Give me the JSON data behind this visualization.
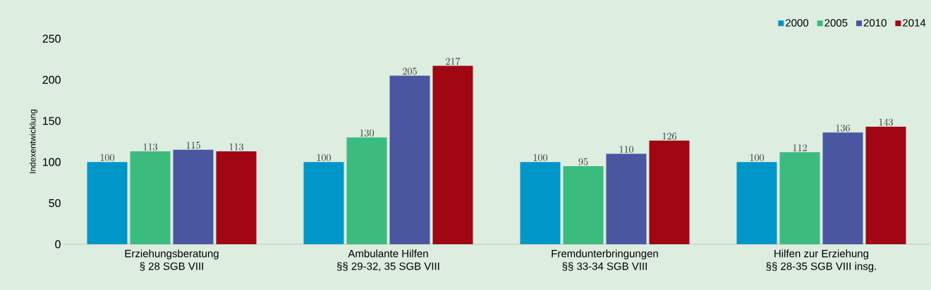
{
  "chart_data": {
    "type": "bar",
    "ylabel": "Indexentwicklung",
    "categories": [
      "Erziehungsberatung\n§ 28 SGB VIII",
      "Ambulante Hilfen\n§§ 29-32, 35 SGB VIII",
      "Fremdunterbringungen\n§§ 33-34 SGB VIII",
      "Hilfen zur Erziehung\n§§ 28-35 SGB VIII insg."
    ],
    "series": [
      {
        "name": "2000",
        "color": "#0096c8",
        "values": [
          100,
          100,
          100,
          100
        ]
      },
      {
        "name": "2005",
        "color": "#3cbb7e",
        "values": [
          113,
          130,
          95,
          112
        ]
      },
      {
        "name": "2010",
        "color": "#4a56a0",
        "values": [
          115,
          205,
          110,
          136
        ]
      },
      {
        "name": "2014",
        "color": "#a00712",
        "values": [
          113,
          217,
          126,
          143
        ]
      }
    ],
    "ylim": [
      0,
      250
    ],
    "yticks": [
      0,
      50,
      100,
      150,
      200,
      250
    ],
    "data_labels": true,
    "legend": "top right",
    "grid": false
  }
}
